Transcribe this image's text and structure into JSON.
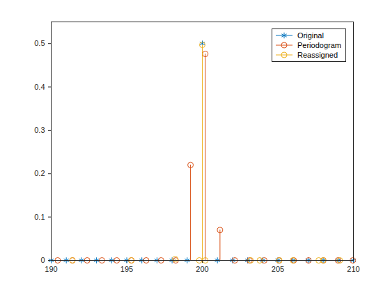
{
  "chart_data": {
    "type": "stem",
    "xlim": [
      190,
      210
    ],
    "xticks": [
      190,
      195,
      200,
      205,
      210
    ],
    "ylim": [
      0,
      0.55
    ],
    "yticks": [
      0,
      0.1,
      0.2,
      0.3,
      0.4,
      0.5
    ],
    "grid": false,
    "legend": "top-right",
    "series": [
      {
        "name": "Original",
        "color": "#0072BD",
        "marker": "asterisk",
        "x": [
          190,
          191,
          192,
          193,
          194,
          195,
          196,
          197,
          198,
          199,
          200,
          201,
          202,
          203,
          204,
          205,
          206,
          207,
          208,
          209,
          210
        ],
        "values": [
          0,
          0,
          0,
          0,
          0,
          0,
          0,
          0,
          0,
          0,
          0.5,
          0,
          0,
          0,
          0,
          0,
          0,
          0,
          0,
          0,
          0
        ]
      },
      {
        "name": "Periodogram",
        "color": "#D95319",
        "marker": "circle",
        "x": [
          190.43,
          191.41,
          192.38,
          193.36,
          194.34,
          195.31,
          196.29,
          197.27,
          198.24,
          199.22,
          200.2,
          201.17,
          202.15,
          203.13,
          204.1,
          205.08,
          206.05,
          207.03,
          208.01,
          208.98,
          209.96
        ],
        "values": [
          0,
          0,
          0,
          0,
          0,
          0,
          0,
          0,
          0,
          0.22,
          0.476,
          0.07,
          0,
          0,
          0,
          0,
          0,
          0,
          0,
          0,
          0
        ]
      },
      {
        "name": "Reassigned",
        "color": "#EDB120",
        "marker": "circle",
        "x": [
          191.4,
          195.3,
          198.2,
          199.8,
          200.0,
          200.2,
          203.2,
          203.8,
          205.1,
          206.0,
          207.7,
          208.0,
          209.1
        ],
        "values": [
          0,
          0,
          0.003,
          0,
          0.497,
          0,
          0,
          0,
          0,
          0,
          0,
          0,
          0
        ]
      }
    ]
  }
}
